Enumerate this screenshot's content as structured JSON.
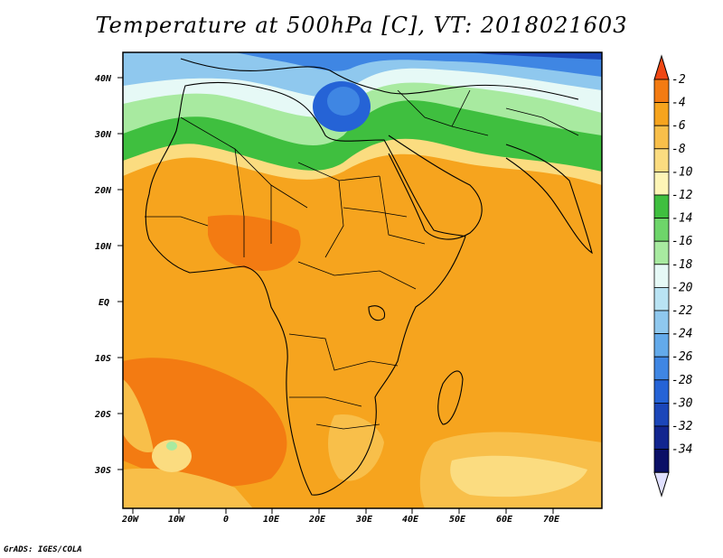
{
  "title": "Temperature at 500hPa [C], VT: 2018021603",
  "credit": "GrADS: IGES/COLA",
  "map": {
    "lat_labels": [
      "40N",
      "30N",
      "20N",
      "10N",
      "EQ",
      "10S",
      "20S",
      "30S"
    ],
    "lon_labels": [
      "20W",
      "10W",
      "0",
      "10E",
      "20E",
      "30E",
      "40E",
      "50E",
      "60E",
      "70E"
    ]
  },
  "colorbar": {
    "levels": [
      "-2",
      "-4",
      "-6",
      "-8",
      "-10",
      "-12",
      "-14",
      "-16",
      "-18",
      "-20",
      "-22",
      "-24",
      "-26",
      "-28",
      "-30",
      "-32",
      "-34"
    ],
    "colors": [
      "#f04814",
      "#f37b12",
      "#f6a41e",
      "#f8bf4a",
      "#fbdc80",
      "#fdf5b6",
      "#3fbf3f",
      "#6ed56a",
      "#a8eaa0",
      "#e6f9f6",
      "#b9e3f3",
      "#8fc8ee",
      "#63aaea",
      "#3f86e3",
      "#2563d6",
      "#1b46b9",
      "#12258f",
      "#0a0f66",
      "#e0e0ff"
    ]
  }
}
